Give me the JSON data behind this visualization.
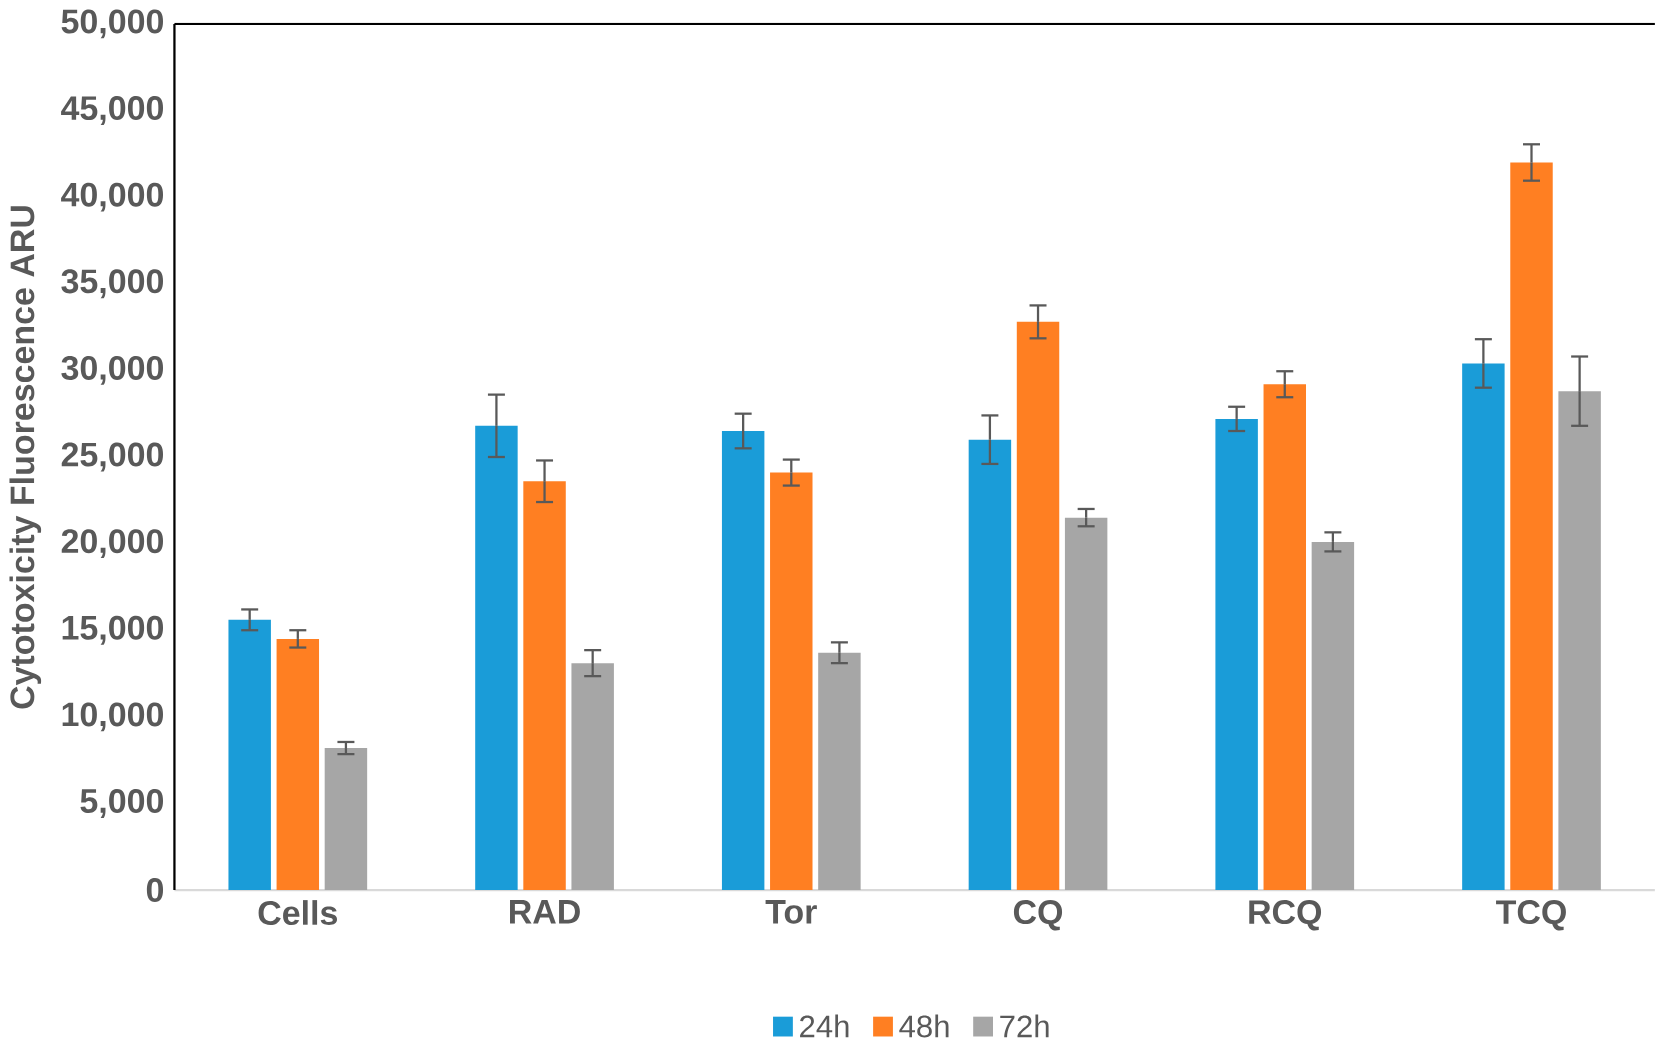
{
  "chart_data": {
    "type": "bar",
    "ylabel": "Cytotoxicity Fluorescence ARU",
    "categories": [
      "Cells",
      "RAD",
      "Tor",
      "CQ",
      "RCQ",
      "TCQ"
    ],
    "series": [
      {
        "name": "24h",
        "color": "#1a9cd8",
        "values": [
          15600,
          26800,
          26500,
          26000,
          27200,
          30400
        ],
        "errors": [
          600,
          1800,
          1000,
          1400,
          700,
          1400
        ]
      },
      {
        "name": "48h",
        "color": "#ff7f22",
        "values": [
          14500,
          23600,
          24100,
          32800,
          29200,
          42000
        ],
        "errors": [
          500,
          1200,
          750,
          950,
          750,
          1050
        ]
      },
      {
        "name": "72h",
        "color": "#a6a6a6",
        "values": [
          8200,
          13100,
          13700,
          21500,
          20100,
          28800
        ],
        "errors": [
          350,
          750,
          600,
          500,
          550,
          2000
        ]
      }
    ],
    "ylim": [
      0,
      50000
    ],
    "yticks": [
      {
        "value": 0,
        "label": "0"
      },
      {
        "value": 5000,
        "label": "5,000"
      },
      {
        "value": 10000,
        "label": "10,000"
      },
      {
        "value": 15000,
        "label": "15,000"
      },
      {
        "value": 20000,
        "label": "20,000"
      },
      {
        "value": 25000,
        "label": "25,000"
      },
      {
        "value": 30000,
        "label": "30,000"
      },
      {
        "value": 35000,
        "label": "35,000"
      },
      {
        "value": 40000,
        "label": "40,000"
      },
      {
        "value": 45000,
        "label": "45,000"
      },
      {
        "value": 50000,
        "label": "50,000"
      }
    ],
    "grid": false,
    "legend": "bottom"
  }
}
